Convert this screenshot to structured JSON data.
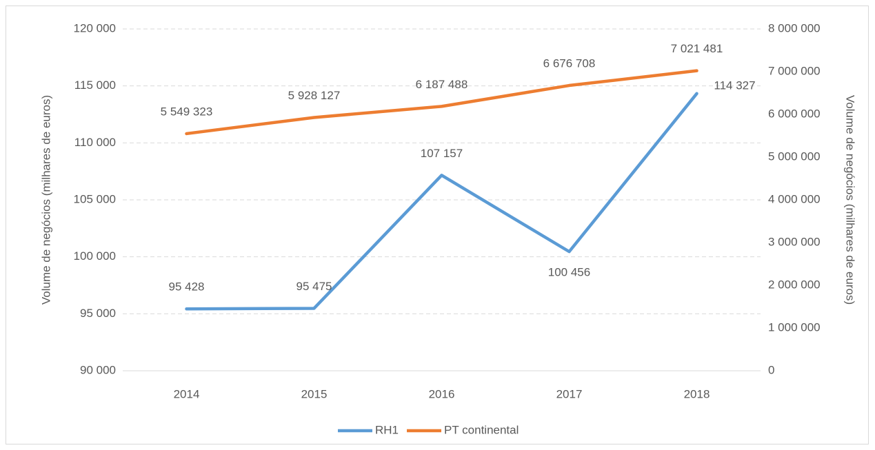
{
  "chart_data": {
    "type": "line",
    "categories": [
      "2014",
      "2015",
      "2016",
      "2017",
      "2018"
    ],
    "series": [
      {
        "name": "RH1",
        "color": "#5b9bd5",
        "values": [
          95428,
          95475,
          107157,
          100456,
          114327
        ],
        "value_labels": [
          "95 428",
          "95 475",
          "107 157",
          "100 456",
          "114 327"
        ]
      },
      {
        "name": "PT continental",
        "color": "#ed7d31",
        "axis": "y2",
        "values": [
          5549323,
          5928127,
          6187488,
          6676708,
          7021481
        ],
        "value_labels": [
          "5 549 323",
          "5 928 127",
          "6 187 488",
          "6 676 708",
          "7 021 481"
        ]
      }
    ],
    "ylabel": "Volume de negócios (milhares de euros)",
    "y2label": "Volume de negócios (milhares de euros)",
    "ylim": [
      90000,
      120000
    ],
    "yticks": [
      {
        "value": 90000,
        "label": "90 000"
      },
      {
        "value": 95000,
        "label": "95 000"
      },
      {
        "value": 100000,
        "label": "100 000"
      },
      {
        "value": 105000,
        "label": "105 000"
      },
      {
        "value": 110000,
        "label": "110 000"
      },
      {
        "value": 115000,
        "label": "115 000"
      },
      {
        "value": 120000,
        "label": "120 000"
      }
    ],
    "y2lim": [
      0,
      8000000
    ],
    "y2ticks": [
      0,
      {
        "value": 1000000,
        "label": "1 000 000"
      },
      {
        "value": 2000000,
        "label": "2 000 000"
      },
      {
        "value": 3000000,
        "label": "3 000 000"
      },
      {
        "value": 4000000,
        "label": "4 000 000"
      },
      {
        "value": 5000000,
        "label": "5 000 000"
      },
      {
        "value": 6000000,
        "label": "6 000 000"
      },
      {
        "value": 7000000,
        "label": "7 000 000"
      },
      {
        "value": 8000000,
        "label": "8 000 000"
      }
    ],
    "grid": true,
    "legend": "bottom"
  }
}
